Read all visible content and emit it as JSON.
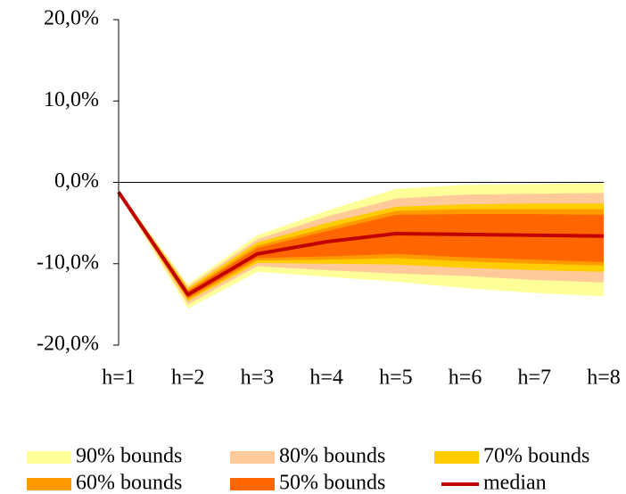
{
  "chart_data": {
    "type": "fan",
    "categories": [
      "h=1",
      "h=2",
      "h=3",
      "h=4",
      "h=5",
      "h=6",
      "h=7",
      "h=8"
    ],
    "ylim": [
      -20,
      20
    ],
    "yticks": [
      {
        "value": -20,
        "label": "-20,0%"
      },
      {
        "value": -10,
        "label": "-10,0%"
      },
      {
        "value": 0,
        "label": "0,0%"
      },
      {
        "value": 10,
        "label": "10,0%"
      },
      {
        "value": 20,
        "label": "20,0%"
      }
    ],
    "series": [
      {
        "name": "90% bounds",
        "color": "#ffff99",
        "upper": [
          -1.0,
          -12.5,
          -6.5,
          -3.5,
          -0.8,
          -0.3,
          -0.2,
          -0.1
        ],
        "lower": [
          -1.4,
          -15.5,
          -11.0,
          -11.6,
          -12.2,
          -13.0,
          -13.6,
          -14.0
        ]
      },
      {
        "name": "80% bounds",
        "color": "#ffc999",
        "upper": [
          -1.05,
          -12.8,
          -7.0,
          -4.2,
          -2.0,
          -1.5,
          -1.4,
          -1.3
        ],
        "lower": [
          -1.35,
          -15.0,
          -10.3,
          -10.8,
          -11.2,
          -11.5,
          -12.0,
          -12.3
        ]
      },
      {
        "name": "70% bounds",
        "color": "#ffcc00",
        "upper": [
          -1.1,
          -13.0,
          -7.4,
          -5.0,
          -3.0,
          -2.7,
          -2.6,
          -2.6
        ],
        "lower": [
          -1.3,
          -14.6,
          -9.9,
          -10.0,
          -10.1,
          -10.5,
          -10.8,
          -11.0
        ]
      },
      {
        "name": "60% bounds",
        "color": "#ff9900",
        "upper": [
          -1.12,
          -13.2,
          -7.8,
          -5.6,
          -3.5,
          -3.3,
          -3.3,
          -3.3
        ],
        "lower": [
          -1.28,
          -14.4,
          -9.6,
          -9.5,
          -9.3,
          -9.7,
          -10.0,
          -10.2
        ]
      },
      {
        "name": "50% bounds",
        "color": "#ff6600",
        "upper": [
          -1.15,
          -13.4,
          -8.1,
          -6.0,
          -4.0,
          -3.9,
          -3.9,
          -4.0
        ],
        "lower": [
          -1.25,
          -14.2,
          -9.3,
          -9.1,
          -8.8,
          -9.2,
          -9.5,
          -9.8
        ]
      },
      {
        "name": "median",
        "color": "#c00000",
        "values": [
          -1.2,
          -13.8,
          -8.8,
          -7.3,
          -6.3,
          -6.4,
          -6.5,
          -6.6
        ]
      }
    ]
  }
}
